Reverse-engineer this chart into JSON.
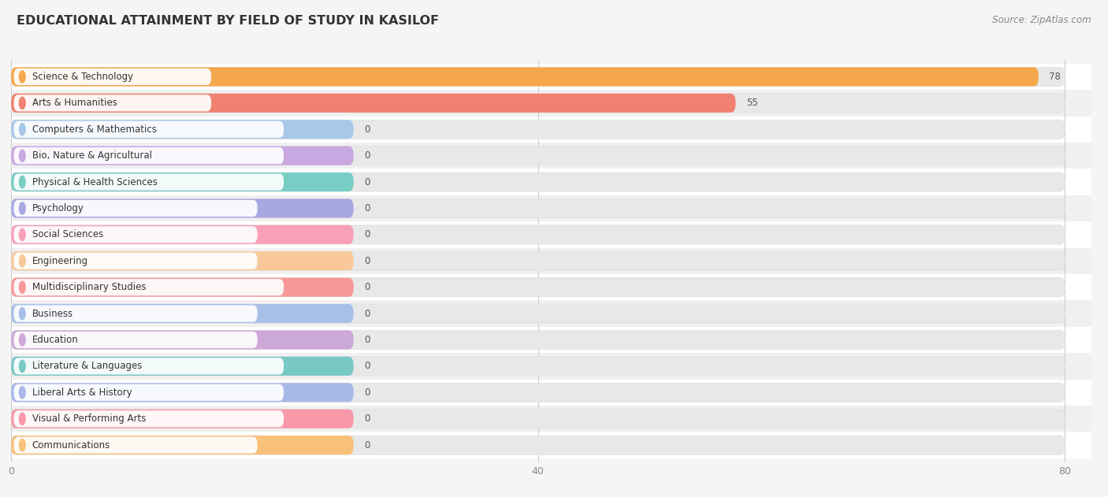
{
  "title": "EDUCATIONAL ATTAINMENT BY FIELD OF STUDY IN KASILOF",
  "source": "Source: ZipAtlas.com",
  "categories": [
    "Science & Technology",
    "Arts & Humanities",
    "Computers & Mathematics",
    "Bio, Nature & Agricultural",
    "Physical & Health Sciences",
    "Psychology",
    "Social Sciences",
    "Engineering",
    "Multidisciplinary Studies",
    "Business",
    "Education",
    "Literature & Languages",
    "Liberal Arts & History",
    "Visual & Performing Arts",
    "Communications"
  ],
  "values": [
    78,
    55,
    0,
    0,
    0,
    0,
    0,
    0,
    0,
    0,
    0,
    0,
    0,
    0,
    0
  ],
  "bar_colors": [
    "#F5A84B",
    "#F08070",
    "#A8C8E8",
    "#C8A8E0",
    "#78CEC4",
    "#A8A8E0",
    "#F8A0B8",
    "#F8C898",
    "#F89898",
    "#A8C0E8",
    "#CCA8D8",
    "#78C8C4",
    "#A8B8E8",
    "#F898A8",
    "#F8C078"
  ],
  "xlim": [
    0,
    80
  ],
  "xticks": [
    0,
    40,
    80
  ],
  "background_color": "#f5f5f5",
  "row_color_even": "#ffffff",
  "row_color_odd": "#f0f0f0",
  "bar_bg_color": "#e8e8e8",
  "title_fontsize": 11.5,
  "source_fontsize": 8.5,
  "label_fontsize": 8.5,
  "value_fontsize": 8.5,
  "zero_bar_width": 26
}
